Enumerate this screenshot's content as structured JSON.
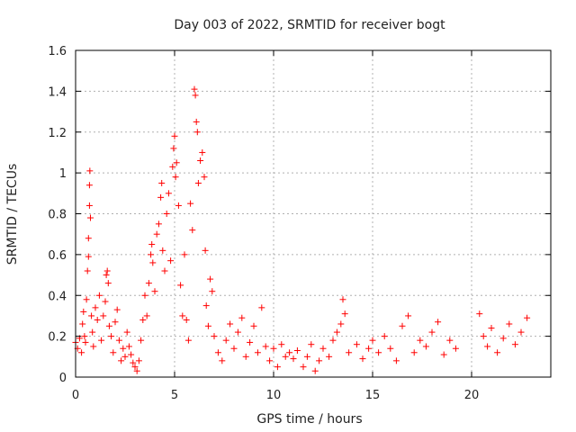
{
  "chart_data": {
    "type": "scatter",
    "title": "Day 003 of 2022, SRMTID for receiver bogt",
    "xlabel": "GPS time / hours",
    "ylabel": "SRMTID / TECUs",
    "xlim": [
      0,
      24
    ],
    "ylim": [
      0,
      1.6
    ],
    "xticks": [
      0,
      5,
      10,
      15,
      20
    ],
    "xtick_labels": [
      "0",
      "5",
      "10",
      "15",
      "20"
    ],
    "yticks": [
      0,
      0.2,
      0.4,
      0.6,
      0.8,
      1.0,
      1.2,
      1.4,
      1.6
    ],
    "ytick_labels": [
      "0",
      "0.2",
      "0.4",
      "0.6",
      "0.8",
      "1",
      "1.2",
      "1.4",
      "1.6"
    ],
    "grid": true,
    "marker": "+",
    "color": "#ff0000",
    "series": [
      {
        "name": "SRMTID",
        "points": [
          [
            0.0,
            0.17
          ],
          [
            0.1,
            0.14
          ],
          [
            0.2,
            0.19
          ],
          [
            0.3,
            0.12
          ],
          [
            0.35,
            0.26
          ],
          [
            0.4,
            0.32
          ],
          [
            0.45,
            0.2
          ],
          [
            0.5,
            0.17
          ],
          [
            0.55,
            0.38
          ],
          [
            0.6,
            0.52
          ],
          [
            0.65,
            0.59
          ],
          [
            0.65,
            0.68
          ],
          [
            0.7,
            0.84
          ],
          [
            0.7,
            0.94
          ],
          [
            0.72,
            1.01
          ],
          [
            0.75,
            0.78
          ],
          [
            0.8,
            0.3
          ],
          [
            0.85,
            0.22
          ],
          [
            0.9,
            0.15
          ],
          [
            1.0,
            0.34
          ],
          [
            1.1,
            0.28
          ],
          [
            1.2,
            0.4
          ],
          [
            1.3,
            0.18
          ],
          [
            1.4,
            0.3
          ],
          [
            1.5,
            0.37
          ],
          [
            1.55,
            0.5
          ],
          [
            1.6,
            0.52
          ],
          [
            1.65,
            0.46
          ],
          [
            1.7,
            0.25
          ],
          [
            1.8,
            0.2
          ],
          [
            1.9,
            0.12
          ],
          [
            2.0,
            0.27
          ],
          [
            2.1,
            0.33
          ],
          [
            2.2,
            0.18
          ],
          [
            2.3,
            0.08
          ],
          [
            2.4,
            0.14
          ],
          [
            2.5,
            0.1
          ],
          [
            2.6,
            0.22
          ],
          [
            2.7,
            0.15
          ],
          [
            2.8,
            0.11
          ],
          [
            2.9,
            0.07
          ],
          [
            3.0,
            0.05
          ],
          [
            3.1,
            0.03
          ],
          [
            3.2,
            0.08
          ],
          [
            3.3,
            0.18
          ],
          [
            3.4,
            0.28
          ],
          [
            3.5,
            0.4
          ],
          [
            3.6,
            0.3
          ],
          [
            3.7,
            0.46
          ],
          [
            3.8,
            0.6
          ],
          [
            3.85,
            0.65
          ],
          [
            3.9,
            0.56
          ],
          [
            4.0,
            0.42
          ],
          [
            4.1,
            0.7
          ],
          [
            4.2,
            0.75
          ],
          [
            4.3,
            0.88
          ],
          [
            4.35,
            0.95
          ],
          [
            4.4,
            0.62
          ],
          [
            4.5,
            0.52
          ],
          [
            4.6,
            0.8
          ],
          [
            4.7,
            0.9
          ],
          [
            4.8,
            0.57
          ],
          [
            4.9,
            1.03
          ],
          [
            4.95,
            1.12
          ],
          [
            5.0,
            1.18
          ],
          [
            5.05,
            0.98
          ],
          [
            5.1,
            1.05
          ],
          [
            5.2,
            0.84
          ],
          [
            5.3,
            0.45
          ],
          [
            5.4,
            0.3
          ],
          [
            5.5,
            0.6
          ],
          [
            5.6,
            0.28
          ],
          [
            5.7,
            0.18
          ],
          [
            5.8,
            0.85
          ],
          [
            5.9,
            0.72
          ],
          [
            6.0,
            1.41
          ],
          [
            6.05,
            1.38
          ],
          [
            6.1,
            1.25
          ],
          [
            6.15,
            1.2
          ],
          [
            6.2,
            0.95
          ],
          [
            6.3,
            1.06
          ],
          [
            6.4,
            1.1
          ],
          [
            6.5,
            0.98
          ],
          [
            6.55,
            0.62
          ],
          [
            6.6,
            0.35
          ],
          [
            6.7,
            0.25
          ],
          [
            6.8,
            0.48
          ],
          [
            6.9,
            0.42
          ],
          [
            7.0,
            0.2
          ],
          [
            7.2,
            0.12
          ],
          [
            7.4,
            0.08
          ],
          [
            7.6,
            0.18
          ],
          [
            7.8,
            0.26
          ],
          [
            8.0,
            0.14
          ],
          [
            8.2,
            0.22
          ],
          [
            8.4,
            0.29
          ],
          [
            8.6,
            0.1
          ],
          [
            8.8,
            0.17
          ],
          [
            9.0,
            0.25
          ],
          [
            9.2,
            0.12
          ],
          [
            9.4,
            0.34
          ],
          [
            9.6,
            0.15
          ],
          [
            9.8,
            0.08
          ],
          [
            10.0,
            0.14
          ],
          [
            10.2,
            0.05
          ],
          [
            10.4,
            0.16
          ],
          [
            10.6,
            0.1
          ],
          [
            10.8,
            0.12
          ],
          [
            11.0,
            0.09
          ],
          [
            11.2,
            0.13
          ],
          [
            11.5,
            0.05
          ],
          [
            11.7,
            0.1
          ],
          [
            11.9,
            0.16
          ],
          [
            12.1,
            0.03
          ],
          [
            12.3,
            0.08
          ],
          [
            12.5,
            0.14
          ],
          [
            12.8,
            0.1
          ],
          [
            13.0,
            0.18
          ],
          [
            13.2,
            0.22
          ],
          [
            13.4,
            0.26
          ],
          [
            13.5,
            0.38
          ],
          [
            13.6,
            0.31
          ],
          [
            13.8,
            0.12
          ],
          [
            14.2,
            0.16
          ],
          [
            14.5,
            0.09
          ],
          [
            14.8,
            0.14
          ],
          [
            15.0,
            0.18
          ],
          [
            15.3,
            0.12
          ],
          [
            15.6,
            0.2
          ],
          [
            15.9,
            0.14
          ],
          [
            16.2,
            0.08
          ],
          [
            16.5,
            0.25
          ],
          [
            16.8,
            0.3
          ],
          [
            17.1,
            0.12
          ],
          [
            17.4,
            0.18
          ],
          [
            17.7,
            0.15
          ],
          [
            18.0,
            0.22
          ],
          [
            18.3,
            0.27
          ],
          [
            18.6,
            0.11
          ],
          [
            18.9,
            0.18
          ],
          [
            19.2,
            0.14
          ],
          [
            20.4,
            0.31
          ],
          [
            20.6,
            0.2
          ],
          [
            20.8,
            0.15
          ],
          [
            21.0,
            0.24
          ],
          [
            21.3,
            0.12
          ],
          [
            21.6,
            0.19
          ],
          [
            21.9,
            0.26
          ],
          [
            22.2,
            0.16
          ],
          [
            22.5,
            0.22
          ],
          [
            22.8,
            0.29
          ]
        ]
      }
    ]
  }
}
